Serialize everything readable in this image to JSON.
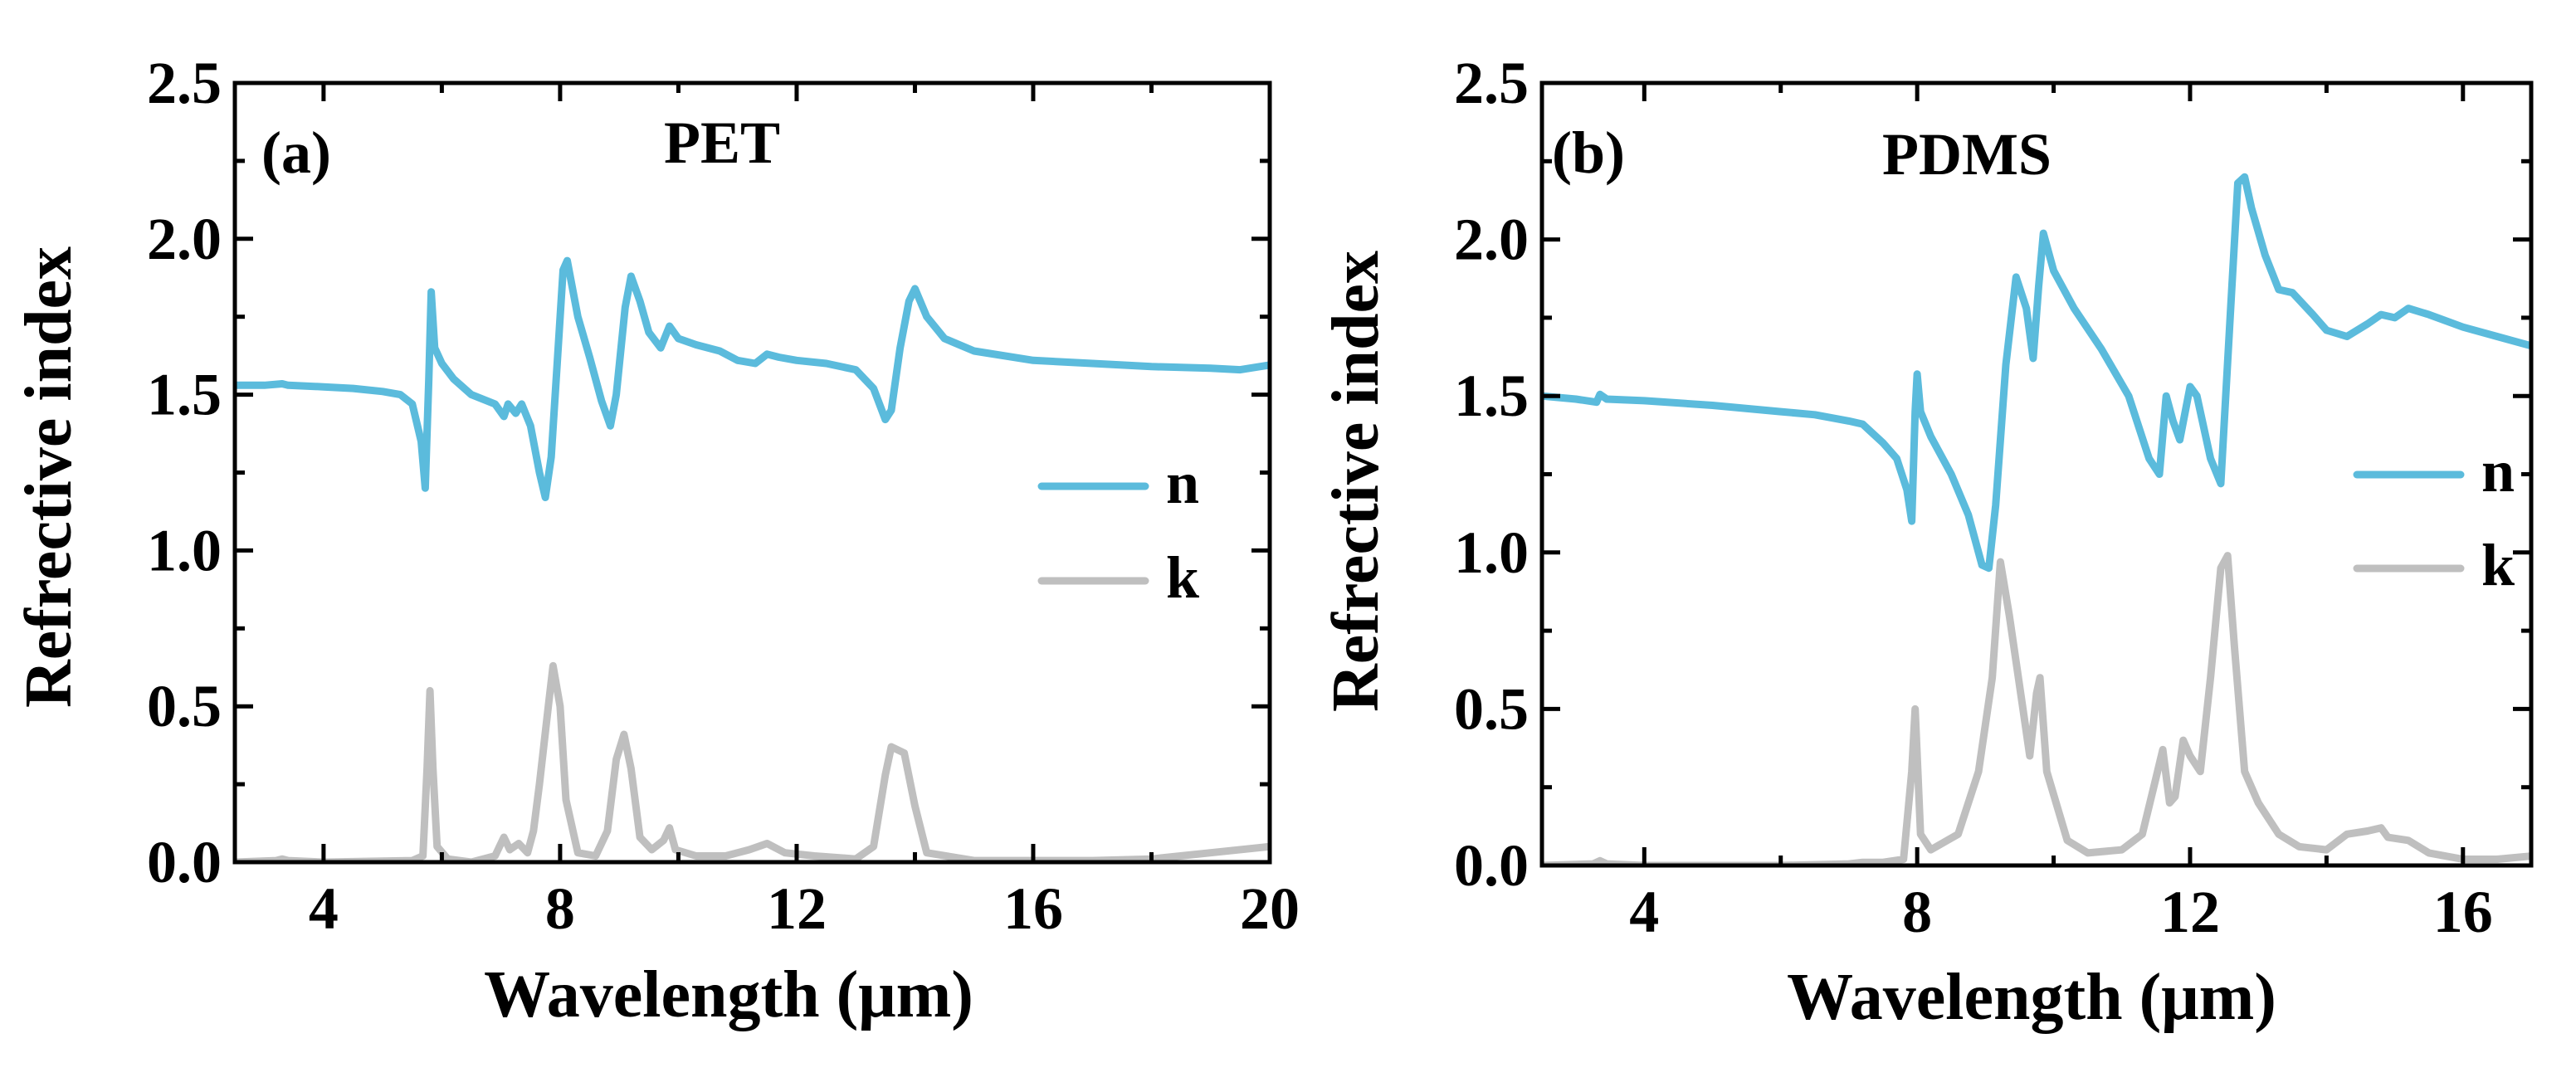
{
  "colors": {
    "n": "#5bbbdc",
    "k": "#bfbfbf",
    "axis": "#000000"
  },
  "chart_data": [
    {
      "type": "line",
      "panel_label": "(a)",
      "title": "PET",
      "xlabel": "Wavelength (μm)",
      "ylabel": "Refrective index",
      "xlim": [
        2.5,
        20
      ],
      "ylim": [
        0,
        2.5
      ],
      "xticks": [
        4,
        8,
        12,
        16,
        20
      ],
      "yticks": [
        0.0,
        0.5,
        1.0,
        1.5,
        2.0,
        2.5
      ],
      "xtick_labels": [
        "4",
        "8",
        "12",
        "16",
        "20"
      ],
      "ytick_labels": [
        "0.0",
        "0.5",
        "1.0",
        "1.5",
        "2.0",
        "2.5"
      ],
      "legend": [
        "n",
        "k"
      ],
      "series": [
        {
          "name": "n",
          "points": [
            [
              2.5,
              1.53
            ],
            [
              3.0,
              1.53
            ],
            [
              3.3,
              1.535
            ],
            [
              3.4,
              1.53
            ],
            [
              4.0,
              1.525
            ],
            [
              4.5,
              1.52
            ],
            [
              5.0,
              1.51
            ],
            [
              5.3,
              1.5
            ],
            [
              5.5,
              1.47
            ],
            [
              5.65,
              1.35
            ],
            [
              5.72,
              1.2
            ],
            [
              5.78,
              1.55
            ],
            [
              5.82,
              1.83
            ],
            [
              5.88,
              1.65
            ],
            [
              6.0,
              1.6
            ],
            [
              6.2,
              1.55
            ],
            [
              6.5,
              1.5
            ],
            [
              6.9,
              1.47
            ],
            [
              7.05,
              1.43
            ],
            [
              7.12,
              1.47
            ],
            [
              7.25,
              1.44
            ],
            [
              7.35,
              1.47
            ],
            [
              7.5,
              1.4
            ],
            [
              7.65,
              1.25
            ],
            [
              7.75,
              1.17
            ],
            [
              7.85,
              1.3
            ],
            [
              7.95,
              1.6
            ],
            [
              8.05,
              1.9
            ],
            [
              8.12,
              1.93
            ],
            [
              8.3,
              1.75
            ],
            [
              8.5,
              1.62
            ],
            [
              8.7,
              1.48
            ],
            [
              8.85,
              1.4
            ],
            [
              8.95,
              1.5
            ],
            [
              9.1,
              1.78
            ],
            [
              9.2,
              1.88
            ],
            [
              9.35,
              1.8
            ],
            [
              9.5,
              1.7
            ],
            [
              9.7,
              1.65
            ],
            [
              9.85,
              1.72
            ],
            [
              10.0,
              1.68
            ],
            [
              10.3,
              1.66
            ],
            [
              10.7,
              1.64
            ],
            [
              11.0,
              1.61
            ],
            [
              11.3,
              1.6
            ],
            [
              11.5,
              1.63
            ],
            [
              11.7,
              1.62
            ],
            [
              12.0,
              1.61
            ],
            [
              12.5,
              1.6
            ],
            [
              13.0,
              1.58
            ],
            [
              13.3,
              1.52
            ],
            [
              13.5,
              1.42
            ],
            [
              13.6,
              1.45
            ],
            [
              13.75,
              1.65
            ],
            [
              13.9,
              1.8
            ],
            [
              14.0,
              1.84
            ],
            [
              14.2,
              1.75
            ],
            [
              14.5,
              1.68
            ],
            [
              15.0,
              1.64
            ],
            [
              16.0,
              1.61
            ],
            [
              17.0,
              1.6
            ],
            [
              18.0,
              1.59
            ],
            [
              19.0,
              1.585
            ],
            [
              19.5,
              1.58
            ],
            [
              20.0,
              1.595
            ]
          ]
        },
        {
          "name": "k",
          "points": [
            [
              2.5,
              0.0
            ],
            [
              3.2,
              0.005
            ],
            [
              3.3,
              0.01
            ],
            [
              3.4,
              0.005
            ],
            [
              4.0,
              0.0
            ],
            [
              5.5,
              0.005
            ],
            [
              5.68,
              0.02
            ],
            [
              5.75,
              0.3
            ],
            [
              5.8,
              0.55
            ],
            [
              5.85,
              0.3
            ],
            [
              5.92,
              0.05
            ],
            [
              6.1,
              0.01
            ],
            [
              6.5,
              0.0
            ],
            [
              6.9,
              0.02
            ],
            [
              7.05,
              0.08
            ],
            [
              7.15,
              0.04
            ],
            [
              7.3,
              0.06
            ],
            [
              7.45,
              0.03
            ],
            [
              7.55,
              0.1
            ],
            [
              7.65,
              0.25
            ],
            [
              7.8,
              0.5
            ],
            [
              7.88,
              0.63
            ],
            [
              8.0,
              0.5
            ],
            [
              8.1,
              0.2
            ],
            [
              8.3,
              0.03
            ],
            [
              8.6,
              0.02
            ],
            [
              8.8,
              0.1
            ],
            [
              8.95,
              0.33
            ],
            [
              9.08,
              0.41
            ],
            [
              9.2,
              0.3
            ],
            [
              9.35,
              0.08
            ],
            [
              9.55,
              0.04
            ],
            [
              9.75,
              0.07
            ],
            [
              9.85,
              0.11
            ],
            [
              9.95,
              0.04
            ],
            [
              10.3,
              0.02
            ],
            [
              10.8,
              0.02
            ],
            [
              11.2,
              0.04
            ],
            [
              11.5,
              0.06
            ],
            [
              11.8,
              0.03
            ],
            [
              12.3,
              0.02
            ],
            [
              13.0,
              0.01
            ],
            [
              13.3,
              0.05
            ],
            [
              13.5,
              0.28
            ],
            [
              13.6,
              0.37
            ],
            [
              13.82,
              0.35
            ],
            [
              14.0,
              0.18
            ],
            [
              14.2,
              0.03
            ],
            [
              15.0,
              0.005
            ],
            [
              16.0,
              0.005
            ],
            [
              17.0,
              0.005
            ],
            [
              18.0,
              0.01
            ],
            [
              19.0,
              0.03
            ],
            [
              20.0,
              0.05
            ]
          ]
        }
      ]
    },
    {
      "type": "line",
      "panel_label": "(b)",
      "title": "PDMS",
      "xlabel": "Wavelength (μm)",
      "ylabel": "Refrective index",
      "xlim": [
        2.5,
        17
      ],
      "ylim": [
        0,
        2.5
      ],
      "xticks": [
        4,
        8,
        12,
        16
      ],
      "yticks": [
        0.0,
        0.5,
        1.0,
        1.5,
        2.0,
        2.5
      ],
      "xtick_labels": [
        "4",
        "8",
        "12",
        "16"
      ],
      "ytick_labels": [
        "0.0",
        "0.5",
        "1.0",
        "1.5",
        "2.0",
        "2.5"
      ],
      "legend": [
        "n",
        "k"
      ],
      "series": [
        {
          "name": "n",
          "points": [
            [
              2.5,
              1.5
            ],
            [
              3.0,
              1.49
            ],
            [
              3.3,
              1.48
            ],
            [
              3.35,
              1.505
            ],
            [
              3.45,
              1.49
            ],
            [
              4.0,
              1.485
            ],
            [
              5.0,
              1.47
            ],
            [
              6.0,
              1.45
            ],
            [
              6.5,
              1.44
            ],
            [
              7.0,
              1.42
            ],
            [
              7.2,
              1.41
            ],
            [
              7.3,
              1.39
            ],
            [
              7.5,
              1.35
            ],
            [
              7.7,
              1.3
            ],
            [
              7.85,
              1.2
            ],
            [
              7.92,
              1.1
            ],
            [
              7.97,
              1.45
            ],
            [
              8.0,
              1.57
            ],
            [
              8.05,
              1.45
            ],
            [
              8.2,
              1.37
            ],
            [
              8.5,
              1.25
            ],
            [
              8.75,
              1.12
            ],
            [
              8.95,
              0.96
            ],
            [
              9.05,
              0.95
            ],
            [
              9.15,
              1.15
            ],
            [
              9.3,
              1.6
            ],
            [
              9.45,
              1.88
            ],
            [
              9.6,
              1.78
            ],
            [
              9.7,
              1.62
            ],
            [
              9.78,
              1.85
            ],
            [
              9.85,
              2.02
            ],
            [
              10.0,
              1.9
            ],
            [
              10.3,
              1.78
            ],
            [
              10.7,
              1.65
            ],
            [
              11.1,
              1.5
            ],
            [
              11.4,
              1.3
            ],
            [
              11.55,
              1.25
            ],
            [
              11.65,
              1.5
            ],
            [
              11.75,
              1.42
            ],
            [
              11.85,
              1.36
            ],
            [
              12.0,
              1.53
            ],
            [
              12.1,
              1.5
            ],
            [
              12.3,
              1.3
            ],
            [
              12.45,
              1.22
            ],
            [
              12.6,
              1.8
            ],
            [
              12.7,
              2.18
            ],
            [
              12.8,
              2.2
            ],
            [
              12.9,
              2.1
            ],
            [
              13.1,
              1.95
            ],
            [
              13.3,
              1.84
            ],
            [
              13.5,
              1.83
            ],
            [
              13.8,
              1.76
            ],
            [
              14.0,
              1.71
            ],
            [
              14.3,
              1.69
            ],
            [
              14.6,
              1.73
            ],
            [
              14.8,
              1.76
            ],
            [
              15.0,
              1.75
            ],
            [
              15.2,
              1.78
            ],
            [
              15.5,
              1.76
            ],
            [
              16.0,
              1.72
            ],
            [
              16.5,
              1.69
            ],
            [
              17.0,
              1.66
            ]
          ]
        },
        {
          "name": "k",
          "points": [
            [
              2.5,
              0.0
            ],
            [
              3.25,
              0.005
            ],
            [
              3.35,
              0.015
            ],
            [
              3.45,
              0.005
            ],
            [
              4.0,
              0.0
            ],
            [
              6.0,
              0.0
            ],
            [
              7.0,
              0.005
            ],
            [
              7.2,
              0.01
            ],
            [
              7.5,
              0.01
            ],
            [
              7.8,
              0.02
            ],
            [
              7.92,
              0.3
            ],
            [
              7.97,
              0.5
            ],
            [
              8.05,
              0.1
            ],
            [
              8.2,
              0.05
            ],
            [
              8.6,
              0.1
            ],
            [
              8.9,
              0.3
            ],
            [
              9.1,
              0.6
            ],
            [
              9.22,
              0.97
            ],
            [
              9.35,
              0.8
            ],
            [
              9.55,
              0.5
            ],
            [
              9.65,
              0.35
            ],
            [
              9.75,
              0.55
            ],
            [
              9.8,
              0.6
            ],
            [
              9.9,
              0.3
            ],
            [
              10.2,
              0.08
            ],
            [
              10.5,
              0.04
            ],
            [
              11.0,
              0.05
            ],
            [
              11.3,
              0.1
            ],
            [
              11.5,
              0.28
            ],
            [
              11.6,
              0.37
            ],
            [
              11.7,
              0.2
            ],
            [
              11.78,
              0.22
            ],
            [
              11.9,
              0.4
            ],
            [
              12.0,
              0.35
            ],
            [
              12.15,
              0.3
            ],
            [
              12.3,
              0.6
            ],
            [
              12.45,
              0.95
            ],
            [
              12.55,
              0.99
            ],
            [
              12.65,
              0.7
            ],
            [
              12.8,
              0.3
            ],
            [
              13.0,
              0.2
            ],
            [
              13.3,
              0.1
            ],
            [
              13.6,
              0.06
            ],
            [
              14.0,
              0.05
            ],
            [
              14.3,
              0.1
            ],
            [
              14.6,
              0.11
            ],
            [
              14.8,
              0.12
            ],
            [
              14.9,
              0.09
            ],
            [
              15.2,
              0.08
            ],
            [
              15.5,
              0.04
            ],
            [
              16.0,
              0.02
            ],
            [
              16.5,
              0.02
            ],
            [
              17.0,
              0.03
            ]
          ]
        }
      ]
    }
  ]
}
